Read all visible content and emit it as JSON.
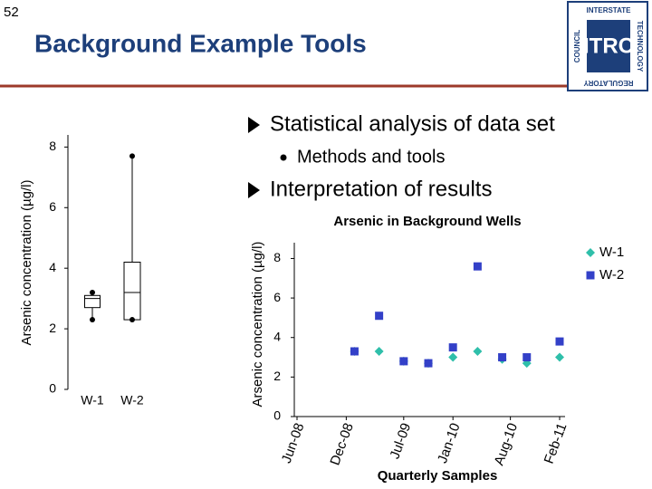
{
  "slide": {
    "page_number": "52",
    "title": "Background Example Tools",
    "bullets": [
      "Statistical analysis of data set",
      "Interpretation of results"
    ],
    "sub_bullets": [
      "Methods and tools"
    ],
    "logo": {
      "name": "ITRC",
      "top": "INTERSTATE",
      "right": "TECHNOLOGY",
      "left": "COUNCIL",
      "bottom": "REGULATORY"
    }
  },
  "chart_data": [
    {
      "type": "box",
      "y_label": "Arsenic concentration (µg/l)",
      "categories": [
        "W-1",
        "W-2"
      ],
      "boxes": [
        {
          "min": 2.3,
          "q1": 2.7,
          "median": 3.0,
          "q3": 3.1,
          "max": 3.2
        },
        {
          "min": 2.3,
          "q1": 2.3,
          "median": 3.2,
          "q3": 4.2,
          "max": 7.7
        }
      ],
      "color": "#000000",
      "ylim": [
        0,
        8.4
      ],
      "yticks": [
        0,
        2,
        4,
        6,
        8
      ]
    },
    {
      "type": "scatter",
      "title": "Arsenic in Background Wells",
      "x_label": "Quarterly Samples",
      "y_label": "Arsenic concentration (µg/l)",
      "x": [
        "2009-01",
        "2009-04",
        "2009-07",
        "2009-10",
        "2010-01",
        "2010-04",
        "2010-07",
        "2010-10",
        "2011-02"
      ],
      "series": [
        {
          "name": "W-1",
          "color": "#2fbfaa",
          "marker": "diamond",
          "values": [
            3.3,
            3.3,
            2.8,
            2.7,
            3.0,
            3.3,
            2.9,
            2.7,
            3.0
          ]
        },
        {
          "name": "W-2",
          "color": "#3340c8",
          "marker": "square",
          "values": [
            3.3,
            5.1,
            2.8,
            2.7,
            3.5,
            7.6,
            3.0,
            3.0,
            3.8
          ]
        }
      ],
      "xlim": [
        "2008-06",
        "2011-02"
      ],
      "xticks": [
        {
          "value": "2008-06",
          "label": "Jun-08"
        },
        {
          "value": "2008-12",
          "label": "Dec-08"
        },
        {
          "value": "2009-07",
          "label": "Jul-09"
        },
        {
          "value": "2010-01",
          "label": "Jan-10"
        },
        {
          "value": "2010-08",
          "label": "Aug-10"
        },
        {
          "value": "2011-02",
          "label": "Feb-11"
        }
      ],
      "ylim": [
        0,
        8.8
      ],
      "yticks": [
        0,
        2,
        4,
        6,
        8
      ],
      "legend": "top-right"
    }
  ]
}
